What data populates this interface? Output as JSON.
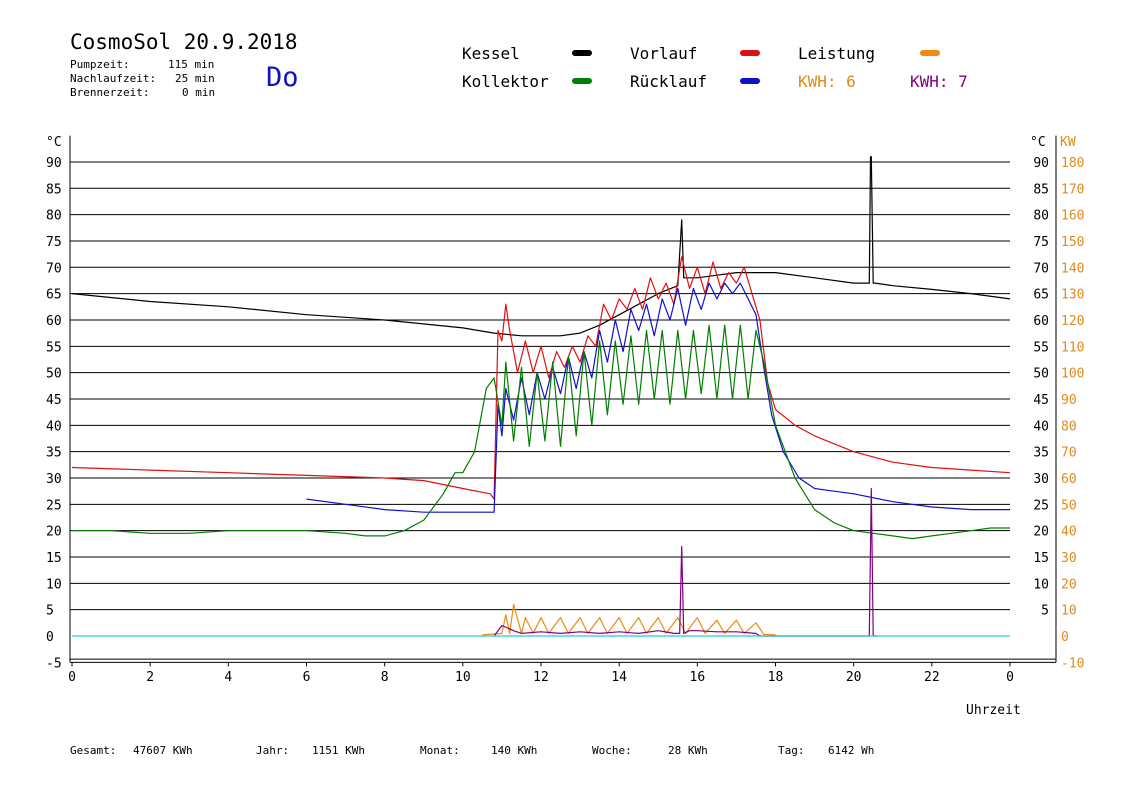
{
  "header": {
    "title": "CosmoSol 20.9.2018",
    "day": "Do",
    "stats": [
      {
        "label": "Pumpzeit:",
        "value": "115 min"
      },
      {
        "label": "Nachlaufzeit:",
        "value": "25 min"
      },
      {
        "label": "Brennerzeit:",
        "value": "0 min"
      }
    ]
  },
  "legend": {
    "kessel": {
      "label": "Kessel",
      "color": "#000000"
    },
    "kollektor": {
      "label": "Kollektor",
      "color": "#008000"
    },
    "vorlauf": {
      "label": "Vorlauf",
      "color": "#e01010"
    },
    "ruecklauf": {
      "label": "Rücklauf",
      "color": "#1010cc"
    },
    "leistung": {
      "label": "Leistung",
      "color": "#f08a10"
    },
    "kwh_orange": "KWH: 6",
    "kwh_purple": "KWH: 7"
  },
  "footer": {
    "gesamt_label": "Gesamt:",
    "gesamt_value": "47607 KWh",
    "jahr_label": "Jahr:",
    "jahr_value": "1151 KWh",
    "monat_label": "Monat:",
    "monat_value": "140 KWh",
    "woche_label": "Woche:",
    "woche_value": "28 KWh",
    "tag_label": "Tag:",
    "tag_value": "6142 Wh"
  },
  "chart_data": {
    "type": "line",
    "xlabel": "Uhrzeit",
    "ylabel_left": "°C",
    "ylabel_right_1": "°C",
    "ylabel_right_2": "KW",
    "xlim": [
      0,
      24
    ],
    "ylim": [
      -5,
      95
    ],
    "x_ticks": [
      "0",
      "2",
      "4",
      "6",
      "8",
      "10",
      "12",
      "14",
      "16",
      "18",
      "20",
      "22",
      "0"
    ],
    "y_ticks_left": [
      "90",
      "85",
      "80",
      "75",
      "70",
      "65",
      "60",
      "55",
      "50",
      "45",
      "40",
      "35",
      "30",
      "25",
      "20",
      "15",
      "10",
      "5",
      "0",
      "-5"
    ],
    "y_ticks_right": [
      "90",
      "85",
      "80",
      "75",
      "70",
      "65",
      "60",
      "55",
      "50",
      "45",
      "40",
      "35",
      "30",
      "25",
      "20",
      "15",
      "10",
      "5"
    ],
    "kw_ticks": [
      "180",
      "170",
      "160",
      "150",
      "140",
      "130",
      "120",
      "110",
      "100",
      "90",
      "80",
      "70",
      "60",
      "50",
      "40",
      "30",
      "20",
      "10",
      "0",
      "-10"
    ],
    "series": [
      {
        "key": "kessel",
        "color": "#000000",
        "x": [
          0,
          2,
          4,
          6,
          8,
          10,
          10.8,
          11.5,
          12,
          12.5,
          13,
          13.5,
          14,
          14.5,
          15,
          15.5,
          15.6,
          15.65,
          15.7,
          15.8,
          16,
          16.5,
          17,
          17.5,
          18,
          19,
          20,
          20.4,
          20.43,
          20.45,
          20.5,
          20.55,
          21,
          22,
          23,
          24
        ],
        "y": [
          65,
          63.5,
          62.5,
          61,
          60,
          58.5,
          57.5,
          57,
          57,
          57,
          57.5,
          59,
          61,
          63,
          65,
          66.5,
          79,
          68,
          68,
          68,
          68,
          68.5,
          69,
          69,
          69,
          68,
          67,
          67,
          91,
          91,
          67,
          67,
          66.5,
          65.8,
          65,
          64
        ]
      },
      {
        "key": "vorlauf",
        "color": "#e01010",
        "x": [
          0,
          2,
          4,
          6,
          8,
          9,
          10,
          10.7,
          10.8,
          10.9,
          11.0,
          11.1,
          11.2,
          11.4,
          11.6,
          11.8,
          12,
          12.2,
          12.4,
          12.6,
          12.8,
          13,
          13.2,
          13.4,
          13.6,
          13.8,
          14,
          14.2,
          14.4,
          14.6,
          14.8,
          15,
          15.2,
          15.4,
          15.6,
          15.8,
          16,
          16.2,
          16.4,
          16.6,
          16.8,
          17,
          17.2,
          17.4,
          17.6,
          17.8,
          18,
          18.5,
          19,
          20,
          21,
          22,
          23,
          24
        ],
        "y": [
          32,
          31.5,
          31,
          30.5,
          30,
          29.5,
          28,
          27,
          26,
          58,
          56,
          63,
          58,
          50,
          56,
          50,
          55,
          49,
          54,
          51,
          55,
          52,
          57,
          55,
          63,
          60,
          64,
          62,
          66,
          62,
          68,
          64,
          67,
          63,
          72,
          66,
          70,
          65,
          71,
          66,
          69,
          67,
          70,
          65,
          60,
          48,
          43,
          40,
          38,
          35,
          33,
          32,
          31.5,
          31
        ]
      },
      {
        "key": "ruecklauf",
        "color": "#1010cc",
        "x": [
          6,
          7,
          8,
          9,
          10,
          10.8,
          10.9,
          11.0,
          11.1,
          11.3,
          11.5,
          11.7,
          11.9,
          12.1,
          12.3,
          12.5,
          12.7,
          12.9,
          13.1,
          13.3,
          13.5,
          13.7,
          13.9,
          14.1,
          14.3,
          14.5,
          14.7,
          14.9,
          15.1,
          15.3,
          15.5,
          15.7,
          15.9,
          16.1,
          16.3,
          16.5,
          16.7,
          16.9,
          17.1,
          17.3,
          17.5,
          17.7,
          17.9,
          18.2,
          18.6,
          19,
          19.5,
          20,
          21,
          22,
          23,
          24
        ],
        "y": [
          26,
          25,
          24,
          23.5,
          23.5,
          23.5,
          44,
          38,
          47,
          41,
          49,
          42,
          50,
          45,
          51,
          46,
          53,
          47,
          54,
          49,
          58,
          52,
          60,
          54,
          62,
          58,
          63,
          57,
          64,
          60,
          66,
          59,
          66,
          62,
          67,
          64,
          67,
          65,
          67,
          64,
          61,
          51,
          42,
          35,
          30,
          28,
          27.5,
          27,
          25.5,
          24.5,
          24,
          24
        ]
      },
      {
        "key": "kollektor",
        "color": "#008000",
        "x": [
          0,
          1,
          2,
          3,
          4,
          5,
          6,
          7,
          7.5,
          8,
          8.5,
          9,
          9.5,
          9.8,
          10,
          10.3,
          10.6,
          10.8,
          11.0,
          11.1,
          11.3,
          11.5,
          11.7,
          11.9,
          12.1,
          12.3,
          12.5,
          12.7,
          12.9,
          13.1,
          13.3,
          13.5,
          13.7,
          13.9,
          14.1,
          14.3,
          14.5,
          14.7,
          14.9,
          15.1,
          15.3,
          15.5,
          15.7,
          15.9,
          16.1,
          16.3,
          16.5,
          16.7,
          16.9,
          17.1,
          17.3,
          17.5,
          17.7,
          18,
          18.5,
          19,
          19.5,
          20,
          20.5,
          21,
          21.5,
          22,
          22.5,
          23,
          23.5,
          24
        ],
        "y": [
          20,
          20,
          19.5,
          19.5,
          20,
          20,
          20,
          19.5,
          19,
          19,
          20,
          22,
          27,
          31,
          31,
          35,
          47,
          49,
          40,
          52,
          37,
          51,
          36,
          50,
          37,
          52,
          36,
          53,
          38,
          54,
          40,
          56,
          42,
          56,
          44,
          57,
          44,
          58,
          45,
          58,
          44,
          58,
          45,
          58,
          46,
          59,
          45,
          59,
          45,
          59,
          45,
          58,
          52,
          40,
          30,
          24,
          21.5,
          20,
          19.5,
          19,
          18.5,
          19,
          19.5,
          20,
          20.5,
          20.5
        ]
      },
      {
        "key": "leistung",
        "color": "#f08a10",
        "x": [
          10.5,
          11,
          11.1,
          11.2,
          11.3,
          11.5,
          11.6,
          11.8,
          12,
          12.2,
          12.5,
          12.7,
          13,
          13.2,
          13.5,
          13.7,
          14,
          14.2,
          14.5,
          14.7,
          15,
          15.2,
          15.5,
          15.7,
          16,
          16.2,
          16.5,
          16.7,
          17,
          17.2,
          17.5,
          17.7,
          18
        ],
        "y": [
          0.2,
          0.5,
          4,
          0.5,
          6,
          0.5,
          3.5,
          0.5,
          3.5,
          0.5,
          3.5,
          0.5,
          3.5,
          0.5,
          3.5,
          0.5,
          3.5,
          0.5,
          3.5,
          0.5,
          3.5,
          0.5,
          3.5,
          0.5,
          3.5,
          0.5,
          3,
          0.5,
          3,
          0.5,
          2.5,
          0.3,
          0.2
        ]
      },
      {
        "key": "kwh_purple",
        "color": "#800080",
        "x": [
          10.8,
          11,
          11.3,
          11.5,
          12,
          12.5,
          13,
          13.5,
          14,
          14.5,
          15,
          15.4,
          15.55,
          15.6,
          15.65,
          15.8,
          16,
          16.5,
          17,
          17.5,
          17.6,
          20.3,
          20.4,
          20.45,
          20.5,
          20.6
        ],
        "y": [
          0,
          2,
          1,
          0.5,
          0.8,
          0.5,
          0.8,
          0.5,
          0.8,
          0.5,
          1,
          0.5,
          0.5,
          17,
          0.5,
          1,
          1,
          0.8,
          0.8,
          0.5,
          0,
          0,
          0,
          28,
          0,
          0
        ]
      },
      {
        "key": "baseline",
        "color": "#20d0d0",
        "x": [
          0,
          24
        ],
        "y": [
          0,
          0
        ]
      }
    ]
  }
}
